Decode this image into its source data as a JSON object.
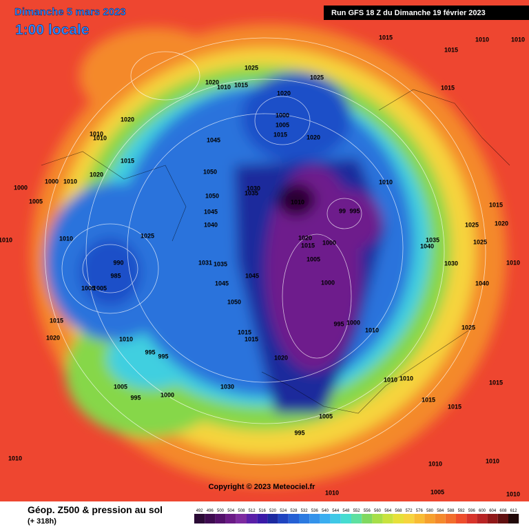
{
  "header": {
    "date": "Dimanche 5 mars 2023",
    "time": "1:00 locale",
    "run": "Run GFS 18 Z du Dimanche 19 février 2023"
  },
  "copyright": "Copyright © 2023 Meteociel.fr",
  "legend": {
    "title": "Géop. Z500 & pression au sol",
    "lead": "(+ 318h)",
    "scale": [
      492,
      496,
      500,
      504,
      508,
      512,
      516,
      520,
      524,
      528,
      532,
      536,
      540,
      544,
      548,
      552,
      556,
      560,
      564,
      568,
      572,
      576,
      580,
      584,
      588,
      592,
      596,
      600,
      604,
      608,
      612
    ]
  },
  "isobar_labels": [
    1015,
    1015,
    1010,
    1010,
    1025,
    1025,
    1020,
    1010,
    1015,
    1020,
    1015,
    1000,
    1005,
    1015,
    1020,
    1020,
    1010,
    1010,
    1045,
    1015,
    1020,
    1050,
    1000,
    1010,
    1000,
    1005,
    1030,
    1035,
    1010,
    1050,
    1010,
    1015,
    995,
    99,
    1045,
    1040,
    1025,
    1020,
    1010,
    1025,
    1020,
    1015,
    1000,
    1035,
    1025,
    1040,
    1010,
    990,
    1031,
    1035,
    1005,
    1030,
    1010,
    985,
    1045,
    1000,
    1045,
    1040,
    1005,
    1005,
    1050,
    1015,
    995,
    1000,
    1025,
    1010,
    1015,
    1015,
    1020,
    1010,
    995,
    995,
    1020,
    1005,
    1030,
    1000,
    995,
    1010,
    1010,
    1015,
    1015,
    1015,
    1005,
    995,
    1010,
    1010,
    1010,
    1010,
    1005,
    1010
  ]
}
